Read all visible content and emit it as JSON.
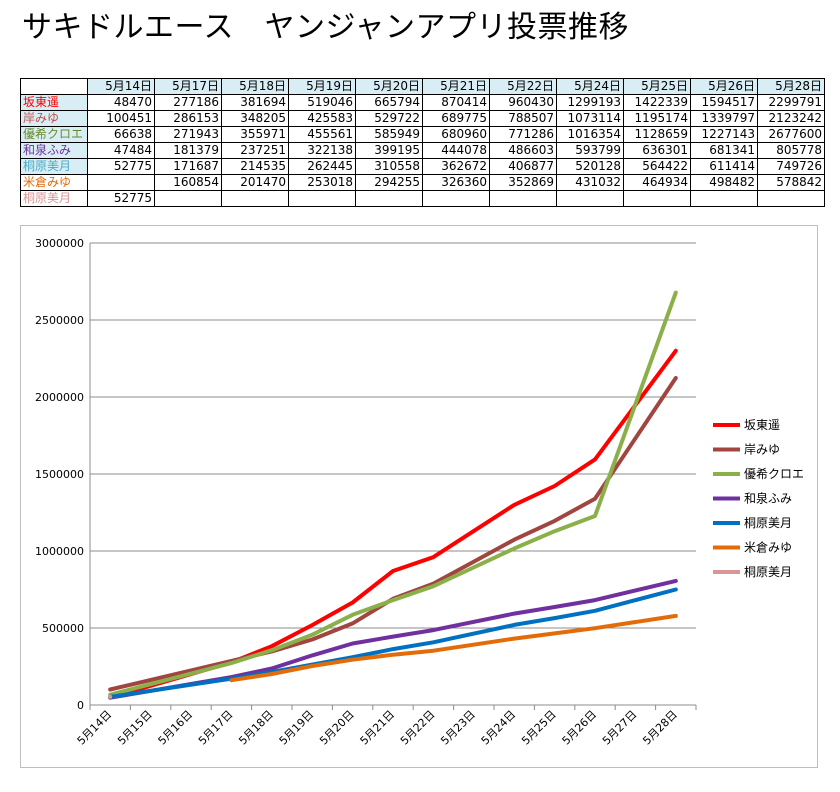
{
  "title": "サキドルエース　ヤンジャンアプリ投票推移",
  "table": {
    "dates": [
      "5月14日",
      "5月17日",
      "5月18日",
      "5月19日",
      "5月20日",
      "5月21日",
      "5月22日",
      "5月24日",
      "5月25日",
      "5月26日",
      "5月28日"
    ],
    "rows": [
      {
        "name": "坂東遥",
        "color": "#ff0000",
        "bg": "#d9eef4",
        "cells": [
          "48470",
          "277186",
          "381694",
          "519046",
          "665794",
          "870414",
          "960430",
          "1299193",
          "1422339",
          "1594517",
          "2299791"
        ]
      },
      {
        "name": "岸みゆ",
        "color": "#c0504d",
        "bg": "#d9eef4",
        "cells": [
          "100451",
          "286153",
          "348205",
          "425583",
          "529722",
          "689775",
          "788507",
          "1073114",
          "1195174",
          "1339797",
          "2123242"
        ]
      },
      {
        "name": "優希クロエ",
        "color": "#6a8a2a",
        "bg": "#d9eef4",
        "cells": [
          "66638",
          "271943",
          "355971",
          "455561",
          "585949",
          "680960",
          "771286",
          "1016354",
          "1128659",
          "1227143",
          "2677600"
        ]
      },
      {
        "name": "和泉ふみ",
        "color": "#7030a0",
        "bg": "#d9eef4",
        "cells": [
          "47484",
          "181379",
          "237251",
          "322138",
          "399195",
          "444078",
          "486603",
          "593799",
          "636301",
          "681341",
          "805778"
        ]
      },
      {
        "name": "桐原美月",
        "color": "#4bacc6",
        "bg": "#d9eef4",
        "cells": [
          "52775",
          "171687",
          "214535",
          "262445",
          "310558",
          "362672",
          "406877",
          "520128",
          "564422",
          "611414",
          "749726"
        ]
      },
      {
        "name": "米倉みゆ",
        "color": "#e36c09",
        "bg": "#ffffff",
        "cells": [
          "",
          "160854",
          "201470",
          "253018",
          "294255",
          "326360",
          "352869",
          "431032",
          "464934",
          "498482",
          "578842"
        ]
      },
      {
        "name": "桐原美月",
        "color": "#d99694",
        "bg": "#ffffff",
        "cells": [
          "52775",
          "",
          "",
          "",
          "",
          "",
          "",
          "",
          "",
          "",
          ""
        ]
      }
    ]
  },
  "chart_data": {
    "type": "line",
    "categories": [
      "5月14日",
      "5月15日",
      "5月16日",
      "5月17日",
      "5月18日",
      "5月19日",
      "5月20日",
      "5月21日",
      "5月22日",
      "5月23日",
      "5月24日",
      "5月25日",
      "5月26日",
      "5月27日",
      "5月28日"
    ],
    "ylim": [
      0,
      3000000
    ],
    "yticks": [
      "0",
      "500000",
      "1000000",
      "1500000",
      "2000000",
      "2500000",
      "3000000"
    ],
    "legend_position": "right",
    "series": [
      {
        "name": "坂東遥",
        "color": "#ff0000",
        "values": [
          48470,
          null,
          null,
          277186,
          381694,
          519046,
          665794,
          870414,
          960430,
          null,
          1299193,
          1422339,
          1594517,
          null,
          2299791
        ]
      },
      {
        "name": "岸みゆ",
        "color": "#a0453f",
        "values": [
          100451,
          null,
          null,
          286153,
          348205,
          425583,
          529722,
          689775,
          788507,
          null,
          1073114,
          1195174,
          1339797,
          null,
          2123242
        ]
      },
      {
        "name": "優希クロエ",
        "color": "#8bb04a",
        "values": [
          66638,
          null,
          null,
          271943,
          355971,
          455561,
          585949,
          680960,
          771286,
          null,
          1016354,
          1128659,
          1227143,
          null,
          2677600
        ]
      },
      {
        "name": "和泉ふみ",
        "color": "#7030a0",
        "values": [
          47484,
          null,
          null,
          181379,
          237251,
          322138,
          399195,
          444078,
          486603,
          null,
          593799,
          636301,
          681341,
          null,
          805778
        ]
      },
      {
        "name": "桐原美月",
        "color": "#0070c0",
        "values": [
          52775,
          null,
          null,
          171687,
          214535,
          262445,
          310558,
          362672,
          406877,
          null,
          520128,
          564422,
          611414,
          null,
          749726
        ]
      },
      {
        "name": "米倉みゆ",
        "color": "#e36c09",
        "values": [
          null,
          null,
          null,
          160854,
          201470,
          253018,
          294255,
          326360,
          352869,
          null,
          431032,
          464934,
          498482,
          null,
          578842
        ]
      },
      {
        "name": "桐原美月",
        "color": "#d99694",
        "values": [
          52775,
          null,
          null,
          null,
          null,
          null,
          null,
          null,
          null,
          null,
          null,
          null,
          null,
          null,
          null
        ]
      }
    ]
  }
}
